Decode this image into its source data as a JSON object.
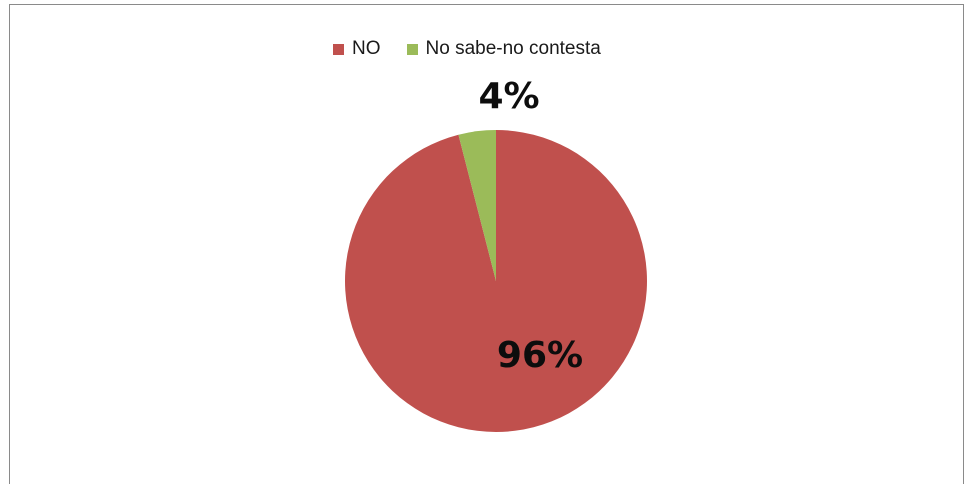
{
  "chart_data": {
    "type": "pie",
    "title": "",
    "categories": [
      "NO",
      "No sabe-no contesta"
    ],
    "values": [
      96,
      4
    ],
    "labels": [
      "96%",
      "4%"
    ],
    "colors": [
      "#c0504d",
      "#9bbb59"
    ],
    "legend_position": "top"
  }
}
